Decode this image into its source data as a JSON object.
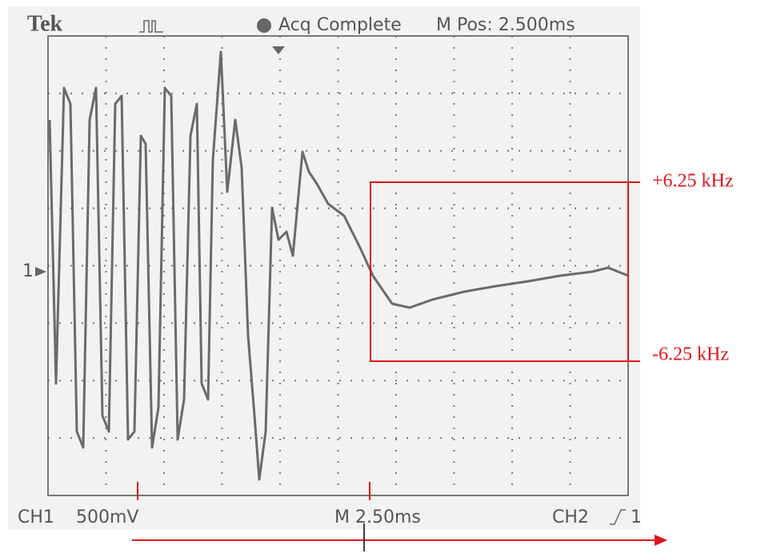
{
  "header": {
    "brand": "Tek",
    "status": "Acq Complete",
    "position": "M Pos: 2.500ms"
  },
  "marker": "1",
  "footer": {
    "channel1": "CH1",
    "scale": "500mV",
    "timebase": "M 2.50ms",
    "channel2": "CH2",
    "trigger_source": "1"
  },
  "annotations": {
    "upper": "+6.25 kHz",
    "lower": "-6.25 kHz"
  }
}
